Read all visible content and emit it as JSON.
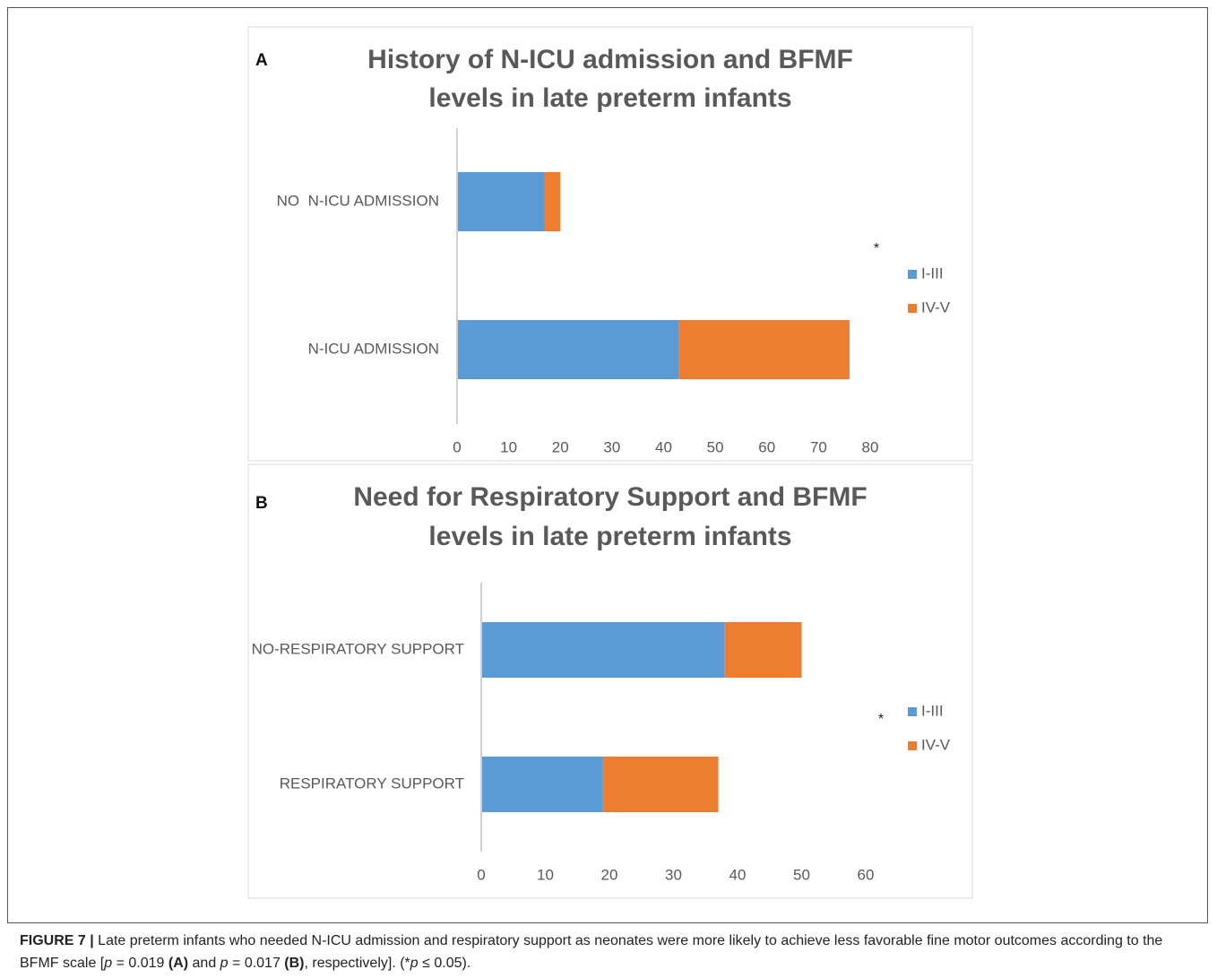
{
  "chart_data": [
    {
      "type": "stacked_barh",
      "panel": "A",
      "title": [
        "History of N-ICU admission and BFMF",
        "levels in late preterm infants"
      ],
      "categories": [
        "NO  N-ICU ADMISSION",
        "N-ICU ADMISSION"
      ],
      "series": [
        {
          "name": "I-III",
          "color": "#5b9bd5",
          "values": [
            17,
            43
          ]
        },
        {
          "name": "IV-V",
          "color": "#ed7d31",
          "values": [
            3,
            33
          ]
        }
      ],
      "xlim": [
        0,
        80
      ],
      "xticks": [
        0,
        10,
        20,
        30,
        40,
        50,
        60,
        70,
        80
      ],
      "annotation": "*",
      "legend": "right"
    },
    {
      "type": "stacked_barh",
      "panel": "B",
      "title": [
        "Need for Respiratory Support and BFMF",
        "levels in late preterm infants"
      ],
      "categories": [
        "NO-RESPIRATORY SUPPORT",
        "RESPIRATORY SUPPORT"
      ],
      "series": [
        {
          "name": "I-III",
          "color": "#5b9bd5",
          "values": [
            38,
            19
          ]
        },
        {
          "name": "IV-V",
          "color": "#ed7d31",
          "values": [
            12,
            18
          ]
        }
      ],
      "xlim": [
        0,
        60
      ],
      "xticks": [
        0,
        10,
        20,
        30,
        40,
        50,
        60
      ],
      "annotation": "*",
      "legend": "right"
    }
  ],
  "caption": [
    {
      "text": "FIGURE 7 |",
      "style": "bold"
    },
    {
      "text": " Late preterm infants who needed N-ICU admission and respiratory support as neonates were more likely to achieve less favorable fine motor outcomes according to the BFMF scale [",
      "style": "normal"
    },
    {
      "text": "p",
      "style": "italic"
    },
    {
      "text": " = 0.019 ",
      "style": "normal"
    },
    {
      "text": "(A)",
      "style": "bold"
    },
    {
      "text": " and ",
      "style": "normal"
    },
    {
      "text": "p",
      "style": "italic"
    },
    {
      "text": " = 0.017 ",
      "style": "normal"
    },
    {
      "text": "(B)",
      "style": "bold"
    },
    {
      "text": ", respectively]. (*",
      "style": "normal"
    },
    {
      "text": "p",
      "style": "italic"
    },
    {
      "text": " ≤ 0.05).",
      "style": "normal"
    }
  ]
}
